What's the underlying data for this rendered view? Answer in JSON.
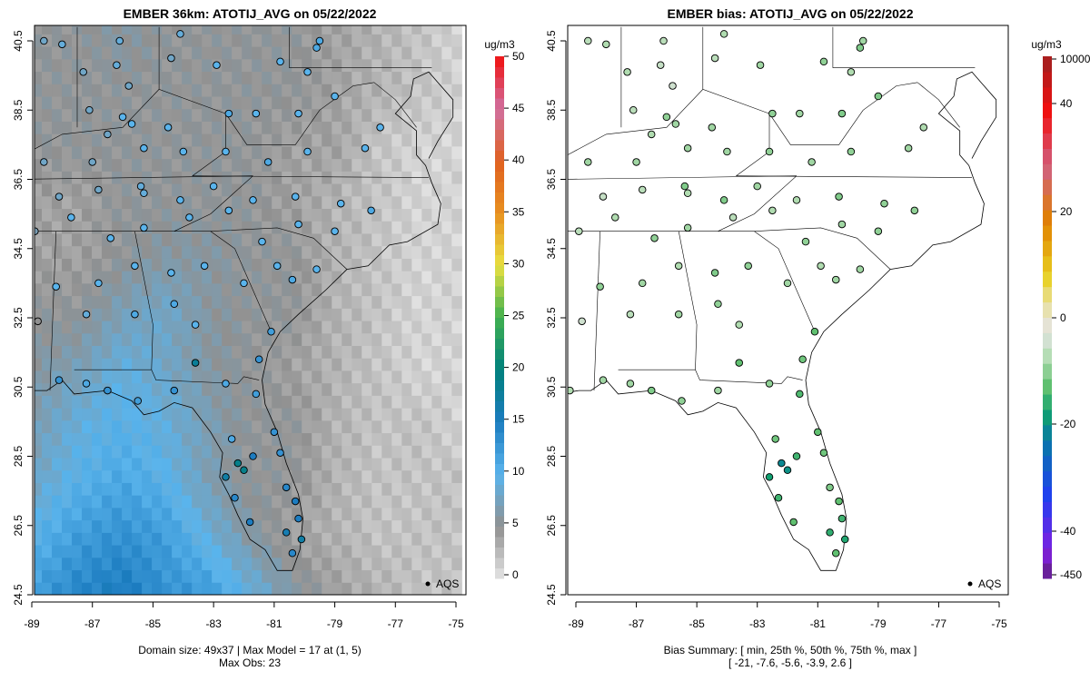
{
  "chart_data": [
    {
      "type": "heatmap",
      "title": "EMBER 36km: ATOTIJ_AVG on 05/22/2022",
      "colorbar_label": "ug/m3",
      "colorbar_ticks": [
        "0",
        "5",
        "10",
        "15",
        "20",
        "25",
        "30",
        "35",
        "40",
        "45",
        "50"
      ],
      "xticks": [
        "-89",
        "-87",
        "-85",
        "-83",
        "-81",
        "-79",
        "-77",
        "-75"
      ],
      "yticks": [
        "24.5",
        "26.5",
        "28.5",
        "30.5",
        "32.5",
        "34.5",
        "36.5",
        "38.5",
        "40.5"
      ],
      "xlim": [
        -89.2,
        -74.8
      ],
      "ylim": [
        24.1,
        40.95
      ],
      "legend": "AQS",
      "footer1": "Domain size: 49x37 | Max Model = 17 at (1, 5)",
      "footer2": "Max Obs: 23",
      "model_grid_coarse": {
        "lon0": -89,
        "lat0": 24.5,
        "dlon": 1.4,
        "dlat": 1.6,
        "rows_south_to_north": [
          [
            12,
            14,
            15,
            13,
            12,
            9,
            6,
            4,
            3,
            2,
            2
          ],
          [
            10,
            12,
            13,
            12,
            9,
            6,
            4,
            3,
            2,
            2,
            2
          ],
          [
            8,
            10,
            11,
            10,
            7,
            5,
            5,
            3,
            2,
            2,
            2
          ],
          [
            7,
            9,
            10,
            9,
            7,
            5,
            5,
            3,
            2,
            2,
            1
          ],
          [
            6,
            7,
            9,
            8,
            6,
            5,
            4,
            3,
            2,
            1,
            1
          ],
          [
            5,
            5,
            7,
            8,
            6,
            5,
            5,
            3,
            2,
            1,
            1
          ],
          [
            4,
            4,
            5,
            6,
            6,
            5,
            5,
            3,
            2,
            1,
            1
          ],
          [
            4,
            4,
            5,
            5,
            5,
            5,
            4,
            3,
            2,
            1,
            1
          ],
          [
            5,
            5,
            5,
            5,
            5,
            5,
            4,
            4,
            2,
            1,
            1
          ],
          [
            5,
            5,
            5,
            5,
            5,
            5,
            5,
            4,
            3,
            2,
            1
          ],
          [
            5,
            5,
            6,
            5,
            5,
            5,
            5,
            4,
            3,
            2,
            1
          ]
        ]
      }
    },
    {
      "type": "scatter",
      "title": "EMBER bias: ATOTIJ_AVG on 05/22/2022",
      "colorbar_label": "ug/m3",
      "colorbar_ticks": [
        "10000",
        "40",
        "20",
        "0",
        "-20",
        "-40",
        "-450"
      ],
      "xticks": [
        "-89",
        "-87",
        "-85",
        "-83",
        "-81",
        "-79",
        "-77",
        "-75"
      ],
      "yticks": [
        "24.5",
        "26.5",
        "28.5",
        "30.5",
        "32.5",
        "34.5",
        "36.5",
        "38.5",
        "40.5"
      ],
      "legend": "AQS",
      "footer1": "Bias Summary: [ min, 25th %, 50th %, 75th %, max ]",
      "footer2": "[ -21,   -7.6,   -5.6,   -3.9,   2.6 ]"
    }
  ],
  "stations": [
    [
      -88.6,
      40.5,
      8,
      -4
    ],
    [
      -88.0,
      40.4,
      9,
      -5
    ],
    [
      -86.1,
      40.5,
      9,
      -4
    ],
    [
      -84.1,
      40.7,
      9,
      -5
    ],
    [
      -79.5,
      40.5,
      11,
      -6
    ],
    [
      -79.6,
      40.3,
      11,
      -8
    ],
    [
      -87.3,
      39.6,
      8,
      -5
    ],
    [
      -86.2,
      39.8,
      9,
      -3
    ],
    [
      -85.8,
      39.2,
      8,
      -2
    ],
    [
      -84.4,
      40.0,
      8,
      -4
    ],
    [
      -82.9,
      39.8,
      10,
      -6
    ],
    [
      -80.8,
      39.9,
      10,
      -7
    ],
    [
      -79.9,
      39.6,
      10,
      -5
    ],
    [
      -87.1,
      38.5,
      8,
      -4
    ],
    [
      -86.0,
      38.3,
      10,
      -7
    ],
    [
      -85.7,
      38.1,
      10,
      -6
    ],
    [
      -84.5,
      38.0,
      10,
      -6
    ],
    [
      -82.5,
      38.4,
      11,
      -7
    ],
    [
      -81.6,
      38.4,
      10,
      -6
    ],
    [
      -80.2,
      38.4,
      10,
      -8
    ],
    [
      -79.0,
      38.9,
      10,
      -8
    ],
    [
      -77.5,
      38.0,
      10,
      -5
    ],
    [
      -88.6,
      37.0,
      8,
      -6
    ],
    [
      -87.0,
      37.0,
      8,
      -6
    ],
    [
      -86.5,
      37.8,
      8,
      -5
    ],
    [
      -85.3,
      37.4,
      10,
      -6
    ],
    [
      -84.0,
      37.3,
      10,
      -6
    ],
    [
      -82.6,
      37.3,
      10,
      -7
    ],
    [
      -81.2,
      37.0,
      11,
      -6
    ],
    [
      -79.9,
      37.3,
      10,
      -7
    ],
    [
      -78.0,
      37.4,
      10,
      -6
    ],
    [
      -88.1,
      36.0,
      8,
      -3
    ],
    [
      -86.8,
      36.2,
      8,
      -4
    ],
    [
      -85.3,
      36.1,
      9,
      -5
    ],
    [
      -85.4,
      36.3,
      9,
      -8
    ],
    [
      -84.1,
      35.9,
      10,
      -8
    ],
    [
      -83.0,
      36.3,
      10,
      -6
    ],
    [
      -81.7,
      35.9,
      10,
      -5
    ],
    [
      -80.3,
      36.0,
      10,
      -8
    ],
    [
      -78.8,
      35.8,
      10,
      -7
    ],
    [
      -77.8,
      35.6,
      11,
      -7
    ],
    [
      -88.9,
      35.0,
      7,
      -4
    ],
    [
      -87.7,
      35.4,
      10,
      -5
    ],
    [
      -86.4,
      34.8,
      10,
      -7
    ],
    [
      -85.3,
      35.1,
      10,
      -6
    ],
    [
      -83.8,
      35.4,
      10,
      -4
    ],
    [
      -82.5,
      35.6,
      10,
      -5
    ],
    [
      -81.4,
      34.7,
      10,
      -7
    ],
    [
      -80.2,
      35.2,
      10,
      -6
    ],
    [
      -79.0,
      35.0,
      10,
      -7
    ],
    [
      -88.2,
      33.4,
      10,
      -7
    ],
    [
      -86.8,
      33.5,
      10,
      -6
    ],
    [
      -85.6,
      34.0,
      10,
      -5
    ],
    [
      -84.4,
      33.8,
      10,
      -8
    ],
    [
      -83.3,
      34.0,
      10,
      -7
    ],
    [
      -82.0,
      33.5,
      10,
      -6
    ],
    [
      -80.9,
      34.0,
      10,
      -5
    ],
    [
      -80.4,
      33.6,
      11,
      -6
    ],
    [
      -79.6,
      33.9,
      10,
      -6
    ],
    [
      -88.8,
      32.4,
      5,
      -2
    ],
    [
      -87.2,
      32.6,
      9,
      -4
    ],
    [
      -85.6,
      32.6,
      11,
      -6
    ],
    [
      -84.3,
      32.9,
      11,
      -7
    ],
    [
      -83.6,
      32.3,
      10,
      -5
    ],
    [
      -81.1,
      32.1,
      12,
      -10
    ],
    [
      -81.5,
      31.3,
      13,
      -9
    ],
    [
      -88.1,
      30.7,
      13,
      -6
    ],
    [
      -87.2,
      30.6,
      11,
      -6
    ],
    [
      -86.5,
      30.4,
      13,
      -8
    ],
    [
      -85.5,
      30.1,
      12,
      -7
    ],
    [
      -84.3,
      30.4,
      13,
      -6
    ],
    [
      -83.6,
      31.2,
      18,
      -10
    ],
    [
      -82.6,
      30.6,
      11,
      -7
    ],
    [
      -81.6,
      30.3,
      12,
      -11
    ],
    [
      -81.0,
      29.2,
      13,
      -10
    ],
    [
      -82.4,
      29.0,
      11,
      -9
    ],
    [
      -82.2,
      28.3,
      19,
      -18
    ],
    [
      -82.0,
      28.1,
      19,
      -17
    ],
    [
      -81.7,
      28.5,
      15,
      -12
    ],
    [
      -80.8,
      28.6,
      13,
      -9
    ],
    [
      -82.6,
      27.9,
      17,
      -15
    ],
    [
      -82.3,
      27.3,
      14,
      -12
    ],
    [
      -81.8,
      26.6,
      15,
      -10
    ],
    [
      -80.6,
      27.6,
      14,
      -8
    ],
    [
      -80.3,
      27.2,
      15,
      -10
    ],
    [
      -80.2,
      26.7,
      15,
      -12
    ],
    [
      -80.1,
      26.1,
      17,
      -14
    ],
    [
      -80.4,
      25.7,
      14,
      -10
    ],
    [
      -80.6,
      26.3,
      16,
      -13
    ],
    [
      -89.2,
      30.4,
      11,
      -5
    ]
  ],
  "coastline": [
    [
      -89.6,
      30.3
    ],
    [
      -88.9,
      30.4
    ],
    [
      -88.5,
      30.4
    ],
    [
      -88.0,
      30.7
    ],
    [
      -87.6,
      30.3
    ],
    [
      -86.5,
      30.4
    ],
    [
      -85.7,
      30.1
    ],
    [
      -85.3,
      29.7
    ],
    [
      -84.8,
      29.8
    ],
    [
      -84.3,
      30.05
    ],
    [
      -83.7,
      29.9
    ],
    [
      -83.1,
      29.2
    ],
    [
      -82.7,
      28.6
    ],
    [
      -82.8,
      27.9
    ],
    [
      -82.5,
      27.4
    ],
    [
      -82.2,
      26.8
    ],
    [
      -81.8,
      26.1
    ],
    [
      -81.3,
      25.8
    ],
    [
      -80.9,
      25.2
    ],
    [
      -80.4,
      25.2
    ],
    [
      -80.15,
      25.8
    ],
    [
      -80.05,
      26.7
    ],
    [
      -80.2,
      27.4
    ],
    [
      -80.6,
      28.3
    ],
    [
      -80.9,
      29.2
    ],
    [
      -81.3,
      30.0
    ],
    [
      -81.4,
      30.7
    ],
    [
      -81.2,
      31.5
    ],
    [
      -80.8,
      32.1
    ],
    [
      -80.2,
      32.6
    ],
    [
      -79.3,
      33.3
    ],
    [
      -78.6,
      33.9
    ],
    [
      -77.9,
      34.0
    ],
    [
      -77.2,
      34.6
    ],
    [
      -76.6,
      34.7
    ],
    [
      -75.6,
      35.2
    ],
    [
      -75.5,
      35.8
    ],
    [
      -75.8,
      36.4
    ],
    [
      -76.0,
      36.9
    ],
    [
      -76.3,
      37.2
    ],
    [
      -76.3,
      37.9
    ],
    [
      -77.0,
      38.4
    ],
    [
      -76.5,
      38.9
    ],
    [
      -76.4,
      39.4
    ],
    [
      -75.9,
      39.6
    ],
    [
      -75.6,
      39.3
    ],
    [
      -75.1,
      38.8
    ],
    [
      -75.1,
      38.3
    ],
    [
      -75.6,
      37.6
    ],
    [
      -75.9,
      37.1
    ]
  ],
  "borders": [
    [
      [
        -75.9,
        36.55
      ],
      [
        -83.7,
        36.6
      ]
    ],
    [
      [
        -89.5,
        36.5
      ],
      [
        -81.7,
        36.6
      ]
    ],
    [
      [
        -90,
        35.0
      ],
      [
        -84.3,
        35.0
      ]
    ],
    [
      [
        -85.6,
        35.0
      ],
      [
        -85.0,
        32.3
      ],
      [
        -85.05,
        31.0
      ]
    ],
    [
      [
        -87.6,
        31.0
      ],
      [
        -85.05,
        31.0
      ]
    ],
    [
      [
        -85.05,
        31.0
      ],
      [
        -84.9,
        30.7
      ],
      [
        -82.2,
        30.6
      ],
      [
        -82.0,
        30.8
      ],
      [
        -81.5,
        30.7
      ]
    ],
    [
      [
        -83.1,
        35.0
      ],
      [
        -82.3,
        34.5
      ],
      [
        -81.1,
        32.1
      ]
    ],
    [
      [
        -84.3,
        35.0
      ],
      [
        -83.1,
        35.0
      ],
      [
        -80.9,
        35.1
      ],
      [
        -79.7,
        34.8
      ],
      [
        -78.6,
        33.9
      ]
    ],
    [
      [
        -88.2,
        35.0
      ],
      [
        -88.4,
        30.4
      ]
    ],
    [
      [
        -84.3,
        35.0
      ],
      [
        -83.1,
        35.5
      ],
      [
        -81.7,
        36.6
      ]
    ],
    [
      [
        -89.5,
        37.1
      ],
      [
        -88,
        37.8
      ],
      [
        -86,
        38.0
      ],
      [
        -84.8,
        39.1
      ],
      [
        -82.6,
        38.4
      ]
    ],
    [
      [
        -82.6,
        38.4
      ],
      [
        -81.9,
        37.5
      ],
      [
        -80.3,
        37.5
      ],
      [
        -79.5,
        38.5
      ],
      [
        -78.4,
        39.2
      ],
      [
        -77.7,
        39.3
      ]
    ],
    [
      [
        -77.7,
        39.3
      ],
      [
        -77.0,
        38.8
      ],
      [
        -76.3,
        38.0
      ]
    ],
    [
      [
        -80.5,
        39.72
      ],
      [
        -75.8,
        39.72
      ]
    ],
    [
      [
        -80.5,
        39.72
      ],
      [
        -80.5,
        40.9
      ]
    ],
    [
      [
        -84.8,
        39.1
      ],
      [
        -84.8,
        40.9
      ]
    ],
    [
      [
        -87.5,
        38.0
      ],
      [
        -87.5,
        40.9
      ]
    ],
    [
      [
        -83.7,
        36.6
      ],
      [
        -82.6,
        37.3
      ],
      [
        -82.6,
        38.4
      ]
    ]
  ]
}
